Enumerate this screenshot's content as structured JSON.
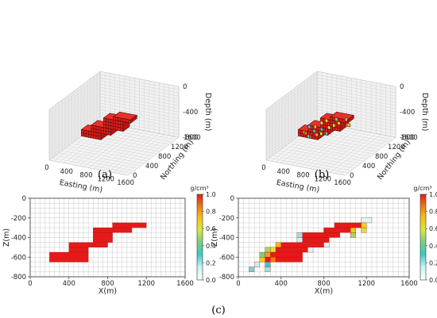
{
  "figure": {
    "captions": [
      "(a)",
      "(b)",
      "(c)"
    ]
  },
  "panels_3d": [
    {
      "caption": "(a)",
      "xlabel": "Easting (m)",
      "ylabel": "Northing (m)",
      "zlabel": "Depth (m)",
      "x_ticks": [
        "0",
        "400",
        "800",
        "1200",
        "1600"
      ],
      "y_ticks": [
        "0",
        "400",
        "800",
        "1200",
        "1600"
      ],
      "z_ticks": [
        "0",
        "-400",
        "-800"
      ]
    },
    {
      "caption": "(b)",
      "xlabel": "Easting (m)",
      "ylabel": "Northing (m)",
      "zlabel": "Depth (m)",
      "x_ticks": [
        "0",
        "400",
        "800",
        "1200",
        "1600"
      ],
      "y_ticks": [
        "0",
        "400",
        "800",
        "1200",
        "1600"
      ],
      "z_ticks": [
        "0",
        "-400",
        "-800"
      ]
    }
  ],
  "chart_data": [
    {
      "type": "heatmap",
      "title": "",
      "xlabel": "X(m)",
      "ylabel": "Z(m)",
      "xlim": [
        0,
        1600
      ],
      "ylim": [
        -800,
        0
      ],
      "x_ticks": [
        "0",
        "400",
        "800",
        "1200",
        "1600"
      ],
      "y_ticks": [
        "0",
        "-200",
        "-400",
        "-600",
        "-800"
      ],
      "cell_size": 50,
      "colorbar": {
        "label": "g/cm³",
        "min": 0,
        "max": 1,
        "ticks": [
          "0.0",
          "0.2",
          "0.4",
          "0.6",
          "0.8",
          "1.0"
        ]
      },
      "cells": [
        {
          "x0": 850,
          "x1": 1200,
          "z_top": -250,
          "z_bot": -300,
          "value": 1.0
        },
        {
          "x0": 650,
          "x1": 1050,
          "z_top": -300,
          "z_bot": -350,
          "value": 1.0
        },
        {
          "x0": 650,
          "x1": 850,
          "z_top": -350,
          "z_bot": -450,
          "value": 1.0
        },
        {
          "x0": 400,
          "x1": 800,
          "z_top": -450,
          "z_bot": -500,
          "value": 1.0
        },
        {
          "x0": 400,
          "x1": 600,
          "z_top": -500,
          "z_bot": -550,
          "value": 1.0
        },
        {
          "x0": 200,
          "x1": 600,
          "z_top": -550,
          "z_bot": -650,
          "value": 1.0
        }
      ]
    },
    {
      "type": "heatmap",
      "title": "",
      "xlabel": "X(m)",
      "ylabel": "Z(m)",
      "xlim": [
        0,
        1600
      ],
      "ylim": [
        -800,
        0
      ],
      "x_ticks": [
        "0",
        "400",
        "800",
        "1200",
        "1600"
      ],
      "y_ticks": [
        "0",
        "-200",
        "-400",
        "-600",
        "-800"
      ],
      "cell_size": 50,
      "colorbar": {
        "label": "g/cm³",
        "min": 0,
        "max": 1,
        "ticks": [
          "0.0",
          "0.2",
          "0.4",
          "0.6",
          "0.8",
          "1.0"
        ]
      },
      "cells": [
        {
          "x0": 1150,
          "x1": 1250,
          "z_top": -200,
          "z_bot": -250,
          "value": 0.1
        },
        {
          "x0": 900,
          "x1": 1150,
          "z_top": -250,
          "z_bot": -300,
          "value": 1.0
        },
        {
          "x0": 1150,
          "x1": 1200,
          "z_top": -250,
          "z_bot": -300,
          "value": 0.65
        },
        {
          "x0": 1150,
          "x1": 1200,
          "z_top": -300,
          "z_bot": -350,
          "value": 0.6
        },
        {
          "x0": 800,
          "x1": 1050,
          "z_top": -300,
          "z_bot": -350,
          "value": 1.0
        },
        {
          "x0": 1050,
          "x1": 1100,
          "z_top": -300,
          "z_bot": -350,
          "value": 0.7
        },
        {
          "x0": 550,
          "x1": 600,
          "z_top": -350,
          "z_bot": -400,
          "value": 0.2
        },
        {
          "x0": 600,
          "x1": 950,
          "z_top": -350,
          "z_bot": -400,
          "value": 1.0
        },
        {
          "x0": 1050,
          "x1": 1100,
          "z_top": -350,
          "z_bot": -400,
          "value": 0.5
        },
        {
          "x0": 600,
          "x1": 850,
          "z_top": -400,
          "z_bot": -450,
          "value": 1.0
        },
        {
          "x0": 550,
          "x1": 600,
          "z_top": -400,
          "z_bot": -450,
          "value": 0.15
        },
        {
          "x0": 400,
          "x1": 800,
          "z_top": -450,
          "z_bot": -500,
          "value": 1.0
        },
        {
          "x0": 350,
          "x1": 400,
          "z_top": -450,
          "z_bot": -500,
          "value": 0.75
        },
        {
          "x0": 800,
          "x1": 850,
          "z_top": -450,
          "z_bot": -500,
          "value": 0.1
        },
        {
          "x0": 350,
          "x1": 650,
          "z_top": -500,
          "z_bot": -550,
          "value": 1.0
        },
        {
          "x0": 650,
          "x1": 700,
          "z_top": -500,
          "z_bot": -550,
          "value": 0.1
        },
        {
          "x0": 300,
          "x1": 350,
          "z_top": -500,
          "z_bot": -550,
          "value": 0.6
        },
        {
          "x0": 250,
          "x1": 300,
          "z_top": -500,
          "z_bot": -550,
          "value": 0.5
        },
        {
          "x0": 300,
          "x1": 600,
          "z_top": -550,
          "z_bot": -600,
          "value": 1.0
        },
        {
          "x0": 250,
          "x1": 300,
          "z_top": -550,
          "z_bot": -600,
          "value": 0.8
        },
        {
          "x0": 200,
          "x1": 250,
          "z_top": -550,
          "z_bot": -600,
          "value": 0.45
        },
        {
          "x0": 250,
          "x1": 300,
          "z_top": -600,
          "z_bot": -650,
          "value": 1.0
        },
        {
          "x0": 350,
          "x1": 600,
          "z_top": -600,
          "z_bot": -650,
          "value": 1.0
        },
        {
          "x0": 300,
          "x1": 350,
          "z_top": -600,
          "z_bot": -650,
          "value": 0.85
        },
        {
          "x0": 200,
          "x1": 250,
          "z_top": -600,
          "z_bot": -650,
          "value": 0.7
        },
        {
          "x0": 150,
          "x1": 200,
          "z_top": -650,
          "z_bot": -700,
          "value": 0.15
        },
        {
          "x0": 250,
          "x1": 300,
          "z_top": -650,
          "z_bot": -700,
          "value": 0.3
        },
        {
          "x0": 100,
          "x1": 150,
          "z_top": -700,
          "z_bot": -750,
          "value": 0.25
        },
        {
          "x0": 250,
          "x1": 300,
          "z_top": -700,
          "z_bot": -750,
          "value": 0.2
        }
      ]
    }
  ]
}
